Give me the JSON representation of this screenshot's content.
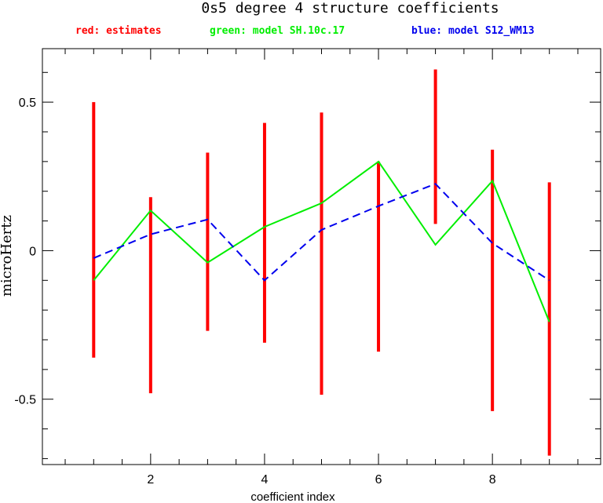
{
  "chart_data": {
    "type": "line",
    "title": "0s5 degree 4 structure coefficients",
    "xlabel": "coefficient index",
    "ylabel": "microHertz",
    "xlim": [
      0.1,
      9.9
    ],
    "ylim": [
      -0.72,
      0.68
    ],
    "x_ticks": [
      2,
      4,
      6,
      8
    ],
    "y_ticks": [
      -0.5,
      0,
      0.5
    ],
    "y_tick_labels": [
      "-0.5",
      "0",
      "0.5"
    ],
    "x_minor_step": 0.5,
    "y_minor_step": 0.1,
    "grid": false,
    "legend_position": "top",
    "legend": [
      {
        "text": "red: estimates",
        "color": "#ff0000"
      },
      {
        "text": "green: model SH.10c.17",
        "color": "#00ee00"
      },
      {
        "text": "blue: model S12_WM13",
        "color": "#0000ee"
      }
    ],
    "error_bars": {
      "name": "estimates",
      "color": "#ff0000",
      "x": [
        1,
        2,
        3,
        4,
        5,
        6,
        7,
        8,
        9
      ],
      "low": [
        -0.36,
        -0.48,
        -0.27,
        -0.31,
        -0.485,
        -0.34,
        0.09,
        -0.54,
        -0.69
      ],
      "high": [
        0.5,
        0.18,
        0.33,
        0.43,
        0.465,
        0.3,
        0.61,
        0.34,
        0.23
      ]
    },
    "series": [
      {
        "name": "model SH.10c.17",
        "color": "#00ee00",
        "style": "solid",
        "x": [
          1,
          2,
          3,
          4,
          5,
          6,
          7,
          8,
          9
        ],
        "values": [
          -0.1,
          0.135,
          -0.04,
          0.08,
          0.16,
          0.3,
          0.02,
          0.235,
          -0.24
        ]
      },
      {
        "name": "model S12_WM13",
        "color": "#0000ee",
        "style": "dashed",
        "x": [
          1,
          2,
          3,
          4,
          5,
          6,
          7,
          8,
          9
        ],
        "values": [
          -0.025,
          0.055,
          0.105,
          -0.1,
          0.07,
          0.15,
          0.225,
          0.025,
          -0.1
        ]
      }
    ]
  }
}
